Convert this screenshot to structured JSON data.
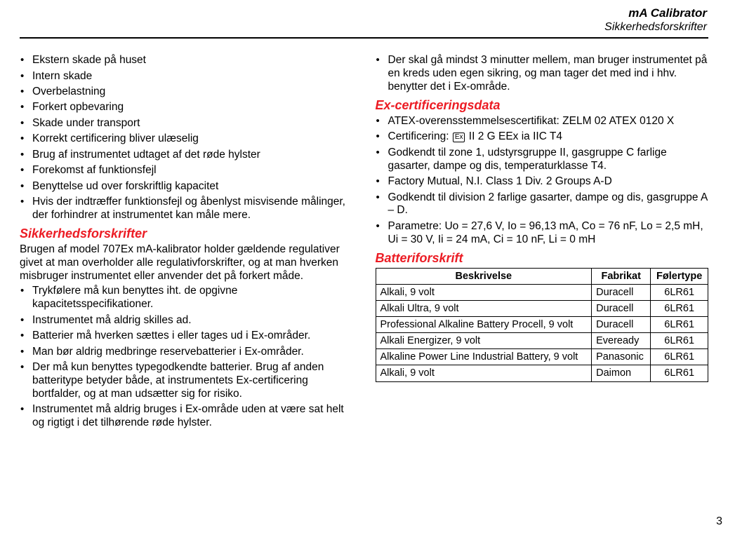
{
  "header": {
    "title": "mA Calibrator",
    "subtitle": "Sikkerhedsforskrifter"
  },
  "left": {
    "bullets1": [
      "Ekstern skade på huset",
      "Intern skade",
      "Overbelastning",
      "Forkert opbevaring",
      "Skade under transport",
      "Korrekt certificering bliver ulæselig",
      "Brug af instrumentet udtaget af det røde hylster",
      "Forekomst af funktionsfejl",
      "Benyttelse ud over forskriftlig kapacitet",
      "Hvis der indtræffer funktionsfejl og åbenlyst misvisende målinger, der forhindrer at instrumentet kan måle mere."
    ],
    "section1_title": "Sikkerhedsforskrifter",
    "section1_para": "Brugen af model 707Ex mA-kalibrator holder gældende regulativer givet at man overholder alle regulativforskrifter, og at man hverken misbruger instrumentet eller anvender det på forkert måde.",
    "bullets2": [
      "Trykfølere må kun benyttes iht. de opgivne kapacitetsspecifikationer.",
      "Instrumentet må aldrig skilles ad.",
      "Batterier må hverken sættes i eller tages ud i Ex-områder.",
      "Man bør aldrig medbringe reservebatterier i Ex-områder.",
      "Der må kun benyttes typegodkendte batterier. Brug af anden batteritype betyder både, at instrumentets Ex-certificering bortfalder, og at man udsætter sig for risiko.",
      "Instrumentet må aldrig bruges i Ex-område uden at være sat helt og rigtigt i det tilhørende røde hylster."
    ]
  },
  "right": {
    "bullets_top": [
      "Der skal gå mindst 3 minutter mellem, man bruger instrumentet på en kreds uden egen sikring, og man tager det med ind i hhv. benytter det i Ex-område."
    ],
    "section_ex_title": "Ex-certificeringsdata",
    "bullets_ex": [
      {
        "text": "ATEX-overensstemmelsescertifikat: ZELM 02 ATEX 0120 X"
      },
      {
        "prefix": "Certificering: ",
        "icon": "Ex",
        "suffix": " II 2 G EEx ia IIC T4"
      },
      {
        "text": "Godkendt til zone 1, udstyrsgruppe II, gasgruppe C farlige gasarter, dampe og dis, temperaturklasse T4."
      },
      {
        "text": "Factory Mutual, N.I. Class 1 Div. 2 Groups A-D"
      },
      {
        "text": "Godkendt til division 2 farlige gasarter, dampe og dis, gasgruppe A – D."
      },
      {
        "text": "Parametre: Uo = 27,6 V, Io = 96,13 mA, Co = 76 nF, Lo = 2,5 mH, Ui = 30 V, Ii = 24 mA, Ci = 10 nF, Li = 0 mH"
      }
    ],
    "section_batt_title": "Batteriforskrift",
    "table": {
      "headers": [
        "Beskrivelse",
        "Fabrikat",
        "Følertype"
      ],
      "rows": [
        [
          "Alkali, 9 volt",
          "Duracell",
          "6LR61"
        ],
        [
          "Alkali Ultra, 9 volt",
          "Duracell",
          "6LR61"
        ],
        [
          "Professional Alkaline Battery Procell, 9 volt",
          "Duracell",
          "6LR61"
        ],
        [
          "Alkali Energizer, 9 volt",
          "Eveready",
          "6LR61"
        ],
        [
          "Alkaline Power Line Industrial Battery, 9 volt",
          "Panasonic",
          "6LR61"
        ],
        [
          "Alkali, 9 volt",
          "Daimon",
          "6LR61"
        ]
      ]
    }
  },
  "page_number": "3"
}
